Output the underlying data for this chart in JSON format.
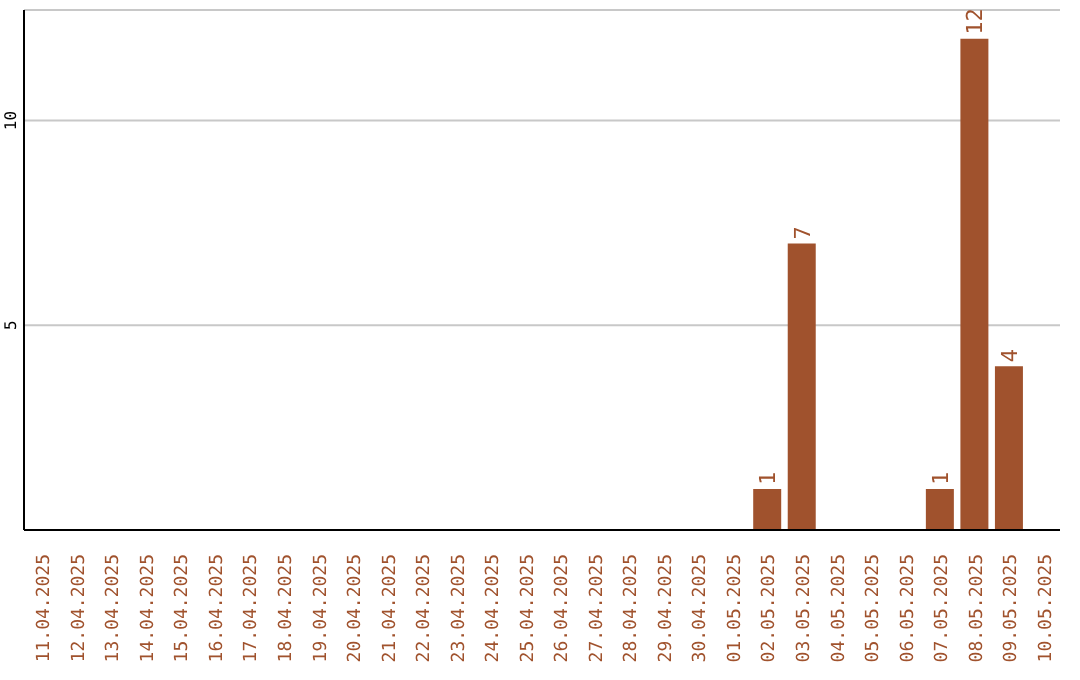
{
  "chart_data": {
    "type": "bar",
    "categories": [
      "11.04.2025",
      "12.04.2025",
      "13.04.2025",
      "14.04.2025",
      "15.04.2025",
      "16.04.2025",
      "17.04.2025",
      "18.04.2025",
      "19.04.2025",
      "20.04.2025",
      "21.04.2025",
      "22.04.2025",
      "23.04.2025",
      "24.04.2025",
      "25.04.2025",
      "26.04.2025",
      "27.04.2025",
      "28.04.2025",
      "29.04.2025",
      "30.04.2025",
      "01.05.2025",
      "02.05.2025",
      "03.05.2025",
      "04.05.2025",
      "05.05.2025",
      "06.05.2025",
      "07.05.2025",
      "08.05.2025",
      "09.05.2025",
      "10.05.2025"
    ],
    "values": [
      null,
      null,
      null,
      null,
      null,
      null,
      null,
      null,
      null,
      null,
      null,
      null,
      null,
      null,
      null,
      null,
      null,
      null,
      null,
      null,
      null,
      1,
      7,
      null,
      null,
      null,
      1,
      12,
      4,
      null
    ],
    "color": "#a0522d",
    "ylim": [
      0,
      12.7
    ],
    "yticks": [
      5,
      10
    ],
    "grid": "y",
    "data_labels": true,
    "legend": false
  }
}
